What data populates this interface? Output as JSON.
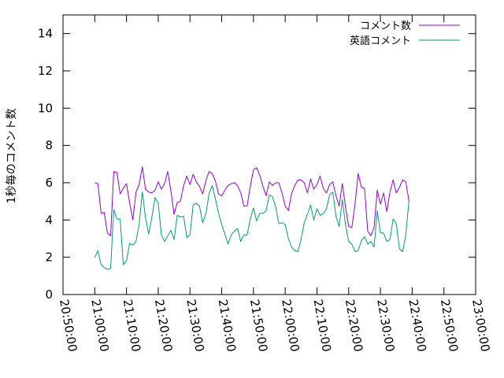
{
  "chart_data": {
    "type": "line",
    "title": "",
    "xlabel": "",
    "ylabel": "1秒毎のコメント数",
    "xlim": [
      "20:50:00",
      "23:00:00"
    ],
    "ylim": [
      0,
      15
    ],
    "x_ticks": [
      "20:50:00",
      "21:00:00",
      "21:10:00",
      "21:20:00",
      "21:30:00",
      "21:40:00",
      "21:50:00",
      "22:00:00",
      "22:10:00",
      "22:20:00",
      "22:30:00",
      "22:40:00",
      "22:50:00",
      "23:00:00"
    ],
    "y_ticks": [
      "0",
      "2",
      "4",
      "6",
      "8",
      "10",
      "12",
      "14"
    ],
    "grid": false,
    "legend_position": "top-right",
    "x_start": "21:00:00",
    "x_step_seconds": 60,
    "series": [
      {
        "name": "コメント数",
        "color": "#9400d3",
        "values": [
          6.0,
          5.95,
          4.35,
          4.4,
          3.3,
          3.15,
          6.6,
          6.55,
          5.4,
          5.7,
          5.95,
          4.9,
          4.0,
          5.5,
          5.9,
          6.85,
          5.65,
          5.5,
          5.45,
          5.6,
          6.05,
          5.65,
          5.95,
          6.6,
          5.55,
          4.3,
          4.95,
          5.0,
          5.85,
          6.35,
          5.9,
          6.45,
          6.05,
          5.8,
          5.4,
          6.1,
          6.6,
          6.5,
          6.1,
          5.4,
          5.3,
          5.6,
          5.85,
          5.95,
          6.0,
          5.85,
          5.45,
          4.75,
          4.75,
          5.8,
          6.7,
          6.8,
          6.4,
          5.8,
          5.3,
          6.05,
          5.85,
          6.0,
          6.0,
          5.45,
          4.75,
          4.5,
          5.4,
          5.85,
          6.15,
          6.15,
          6.0,
          5.45,
          6.2,
          5.65,
          5.9,
          6.35,
          5.7,
          5.45,
          5.9,
          6.05,
          5.3,
          4.75,
          5.95,
          4.7,
          3.65,
          3.6,
          4.85,
          6.5,
          5.75,
          5.7,
          3.4,
          3.15,
          3.6,
          5.6,
          4.85,
          5.45,
          4.45,
          5.5,
          6.15,
          5.45,
          5.75,
          6.15,
          6.05,
          5.0
        ]
      },
      {
        "name": "英語コメント",
        "color": "#009e73",
        "values": [
          2.0,
          2.35,
          1.6,
          1.45,
          1.35,
          1.4,
          4.55,
          4.05,
          4.05,
          1.6,
          1.8,
          2.75,
          2.65,
          2.85,
          3.8,
          5.5,
          4.1,
          3.25,
          4.15,
          5.2,
          4.9,
          3.2,
          2.85,
          3.15,
          3.45,
          2.95,
          4.25,
          4.15,
          4.2,
          3.05,
          3.2,
          4.8,
          4.9,
          4.75,
          3.85,
          4.3,
          5.4,
          5.85,
          5.15,
          4.35,
          3.75,
          3.25,
          2.7,
          3.2,
          3.4,
          3.55,
          2.85,
          3.2,
          3.2,
          4.05,
          4.65,
          3.95,
          4.35,
          4.35,
          4.5,
          5.35,
          5.25,
          4.7,
          3.8,
          3.85,
          3.75,
          3.0,
          2.55,
          2.35,
          2.3,
          2.95,
          3.85,
          4.3,
          4.8,
          4.0,
          4.6,
          4.25,
          4.35,
          4.6,
          5.35,
          5.5,
          4.2,
          3.65,
          5.1,
          3.75,
          2.85,
          2.7,
          2.3,
          2.35,
          2.9,
          3.1,
          2.7,
          2.85,
          2.55,
          4.5,
          3.3,
          3.3,
          2.85,
          2.95,
          4.05,
          3.8,
          2.45,
          2.3,
          3.2,
          5.05
        ]
      }
    ]
  }
}
